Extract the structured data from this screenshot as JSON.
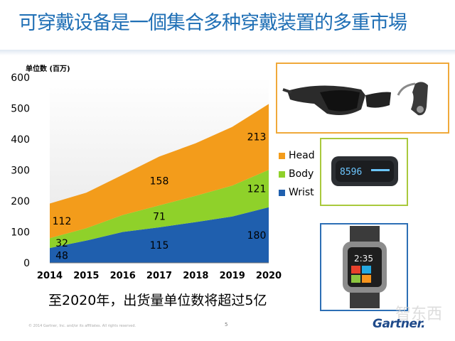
{
  "title": "可穿戴设备是一個集合多种穿戴装置的多重市場",
  "chart_data": {
    "type": "area",
    "stacked": true,
    "unit_label": "单位数 (百万)",
    "x": [
      "2014",
      "2015",
      "2016",
      "2017",
      "2018",
      "2019",
      "2020"
    ],
    "ylim": [
      0,
      600
    ],
    "yticks": [
      "0",
      "100",
      "200",
      "300",
      "400",
      "500",
      "600"
    ],
    "series": [
      {
        "name": "Wrist",
        "color": "#1f5fae",
        "values": [
          48,
          72,
          100,
          115,
          132,
          150,
          180
        ]
      },
      {
        "name": "Body",
        "color": "#8fd12a",
        "values": [
          32,
          40,
          55,
          71,
          85,
          100,
          121
        ]
      },
      {
        "name": "Head",
        "color": "#f39c1b",
        "values": [
          112,
          115,
          130,
          158,
          170,
          190,
          213
        ]
      }
    ],
    "data_labels": [
      {
        "series": "Head",
        "x": "2014",
        "text": "112"
      },
      {
        "series": "Body",
        "x": "2014",
        "text": "32"
      },
      {
        "series": "Wrist",
        "x": "2014",
        "text": "48"
      },
      {
        "series": "Head",
        "x": "2017",
        "text": "158"
      },
      {
        "series": "Body",
        "x": "2017",
        "text": "71"
      },
      {
        "series": "Wrist",
        "x": "2017",
        "text": "115"
      },
      {
        "series": "Head",
        "x": "2020",
        "text": "213"
      },
      {
        "series": "Body",
        "x": "2020",
        "text": "121"
      },
      {
        "series": "Wrist",
        "x": "2020",
        "text": "180"
      }
    ],
    "legend": [
      "Head",
      "Body",
      "Wrist"
    ],
    "legend_placement": "right"
  },
  "images": {
    "glasses": "smart-glasses-and-headset",
    "band": "fitness-band",
    "band_readout": "8596",
    "watch": "smartwatch",
    "watch_time": "2:35"
  },
  "caption": "至2020年，出货量单位数将超过5亿",
  "footer": {
    "copyright": "© 2014 Gartner, Inc. and/or its affiliates. All rights reserved.",
    "page": "5",
    "watermark": "智东西",
    "brand": "Gartner."
  }
}
